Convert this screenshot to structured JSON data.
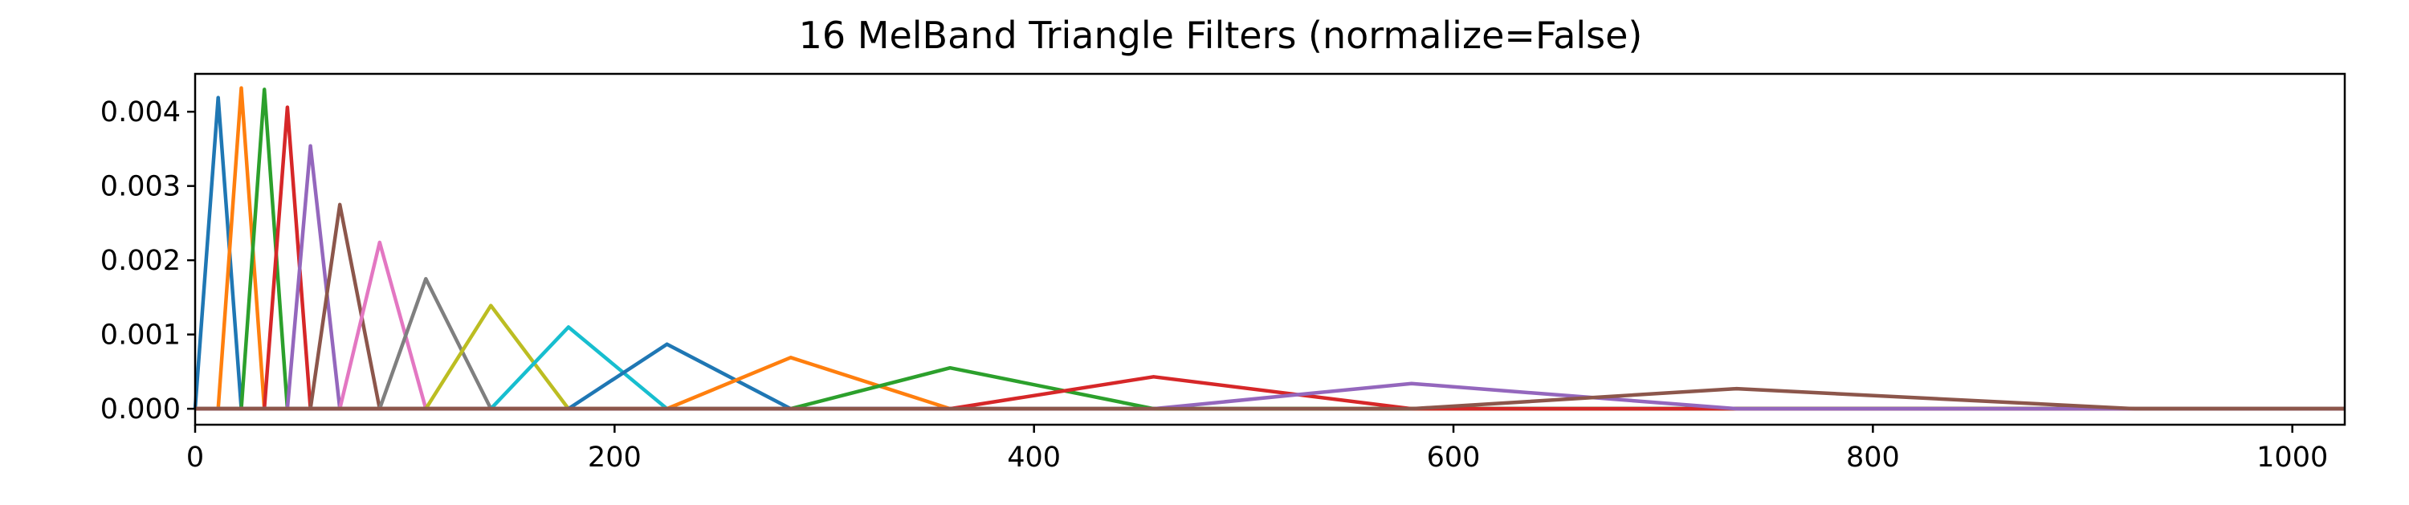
{
  "chart_data": {
    "type": "line",
    "title": "16 MelBand Triangle Filters (normalize=False)",
    "xlabel": "",
    "ylabel": "",
    "xlim": [
      0,
      1025
    ],
    "ylim": [
      -0.000215,
      0.00451
    ],
    "grid": false,
    "x_ticks": [
      0,
      200,
      400,
      600,
      800,
      1000
    ],
    "y_ticks": [
      0.0,
      0.001,
      0.002,
      0.003,
      0.004
    ],
    "x_tick_labels": [
      "0",
      "200",
      "400",
      "600",
      "800",
      "1000"
    ],
    "y_tick_labels": [
      "0.000",
      "0.001",
      "0.002",
      "0.003",
      "0.004"
    ],
    "series": [
      {
        "color": "#1f77b4",
        "points": [
          [
            0,
            0
          ],
          [
            11,
            0.00419
          ],
          [
            22,
            0
          ]
        ]
      },
      {
        "color": "#ff7f0e",
        "points": [
          [
            11,
            0
          ],
          [
            22,
            0.00432
          ],
          [
            33,
            0
          ]
        ]
      },
      {
        "color": "#2ca02c",
        "points": [
          [
            22,
            0
          ],
          [
            33,
            0.0043
          ],
          [
            44,
            0
          ]
        ]
      },
      {
        "color": "#d62728",
        "points": [
          [
            33,
            0
          ],
          [
            44,
            0.00406
          ],
          [
            55,
            0
          ]
        ]
      },
      {
        "color": "#9467bd",
        "points": [
          [
            44,
            0
          ],
          [
            55,
            0.00354
          ],
          [
            69,
            0
          ]
        ]
      },
      {
        "color": "#8c564b",
        "points": [
          [
            55,
            0
          ],
          [
            69,
            0.00275
          ],
          [
            88,
            0
          ]
        ]
      },
      {
        "color": "#e377c2",
        "points": [
          [
            69,
            0
          ],
          [
            88,
            0.00224
          ],
          [
            110,
            0
          ]
        ]
      },
      {
        "color": "#7f7f7f",
        "points": [
          [
            88,
            0
          ],
          [
            110,
            0.00175
          ],
          [
            141,
            0
          ]
        ]
      },
      {
        "color": "#bcbd22",
        "points": [
          [
            110,
            0
          ],
          [
            141,
            0.00139
          ],
          [
            178,
            0
          ]
        ]
      },
      {
        "color": "#17becf",
        "points": [
          [
            141,
            0
          ],
          [
            178,
            0.0011
          ],
          [
            225,
            0
          ]
        ]
      },
      {
        "color": "#1f77b4",
        "points": [
          [
            178,
            0
          ],
          [
            225,
            0.00087
          ],
          [
            284,
            0
          ]
        ]
      },
      {
        "color": "#ff7f0e",
        "points": [
          [
            225,
            0
          ],
          [
            284,
            0.00069
          ],
          [
            360,
            0
          ]
        ]
      },
      {
        "color": "#2ca02c",
        "points": [
          [
            284,
            0
          ],
          [
            360,
            0.00055
          ],
          [
            457,
            0
          ]
        ]
      },
      {
        "color": "#d62728",
        "points": [
          [
            360,
            0
          ],
          [
            457,
            0.00043
          ],
          [
            580,
            0
          ]
        ]
      },
      {
        "color": "#9467bd",
        "points": [
          [
            457,
            0
          ],
          [
            580,
            0.00034
          ],
          [
            735,
            0
          ]
        ]
      },
      {
        "color": "#8c564b",
        "points": [
          [
            580,
            0
          ],
          [
            735,
            0.00027
          ],
          [
            925,
            0
          ]
        ]
      }
    ]
  }
}
